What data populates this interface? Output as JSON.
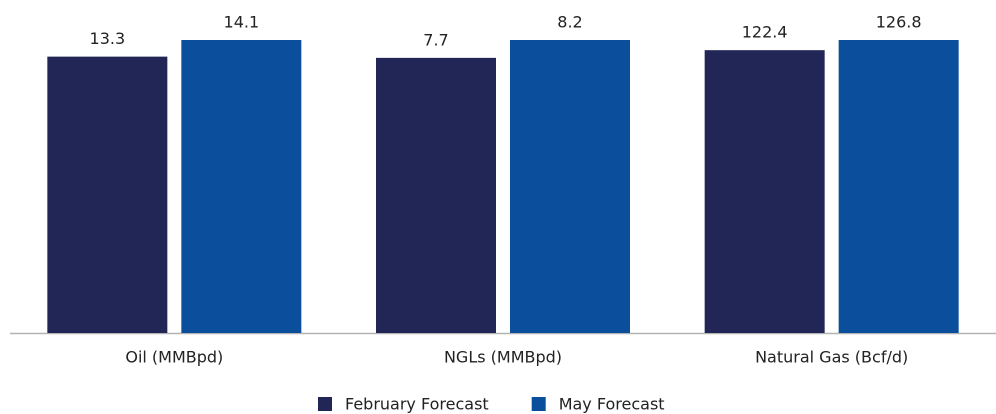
{
  "chart_data": {
    "type": "bar",
    "categories": [
      "Oil (MMBpd)",
      "NGLs (MMBpd)",
      "Natural Gas (Bcf/d)"
    ],
    "series": [
      {
        "name": "February Forecast",
        "color": "#222657",
        "values": [
          13.3,
          7.7,
          122.4
        ]
      },
      {
        "name": "May Forecast",
        "color": "#0b4f9c",
        "values": [
          14.1,
          8.2,
          126.8
        ]
      }
    ]
  }
}
